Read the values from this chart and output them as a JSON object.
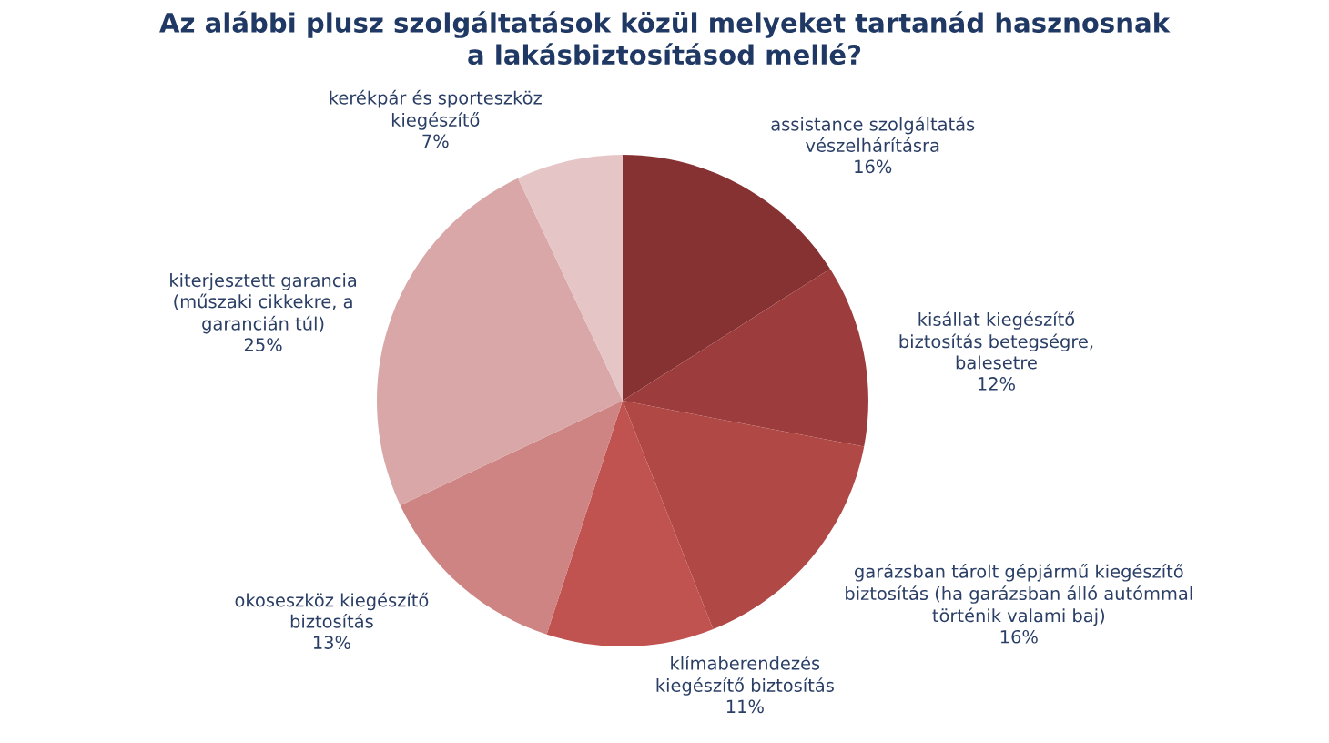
{
  "chart_data": {
    "type": "pie",
    "title": "Az alábbi plusz szolgáltatások közül melyeket tartanád hasznosnak\na lakásbiztosításod mellé?",
    "categories": [
      "assistance szolgáltatás\nvészelhárításra",
      "kisállat kiegészítő\nbiztosítás betegségre,\nbalesetre",
      "garázsban tárolt gépjármű kiegészítő\nbiztosítás (ha garázsban álló autómmal\ntörténik valami baj)",
      "klímaberendezés\nkiegészítő biztosítás",
      "okoseszköz kiegészítő\nbiztosítás",
      "kiterjesztett garancia\n(műszaki cikkekre, a\ngarancián túl)",
      "kerékpár és sporteszköz\nkiegészítő"
    ],
    "values": [
      16,
      12,
      16,
      11,
      13,
      25,
      7
    ],
    "value_labels": [
      "16%",
      "12%",
      "16%",
      "11%",
      "13%",
      "25%",
      "7%"
    ],
    "colors": [
      "#873232",
      "#9c3c3c",
      "#b04845",
      "#c05250",
      "#cd8482",
      "#d9a7a7",
      "#e5c5c6"
    ]
  }
}
